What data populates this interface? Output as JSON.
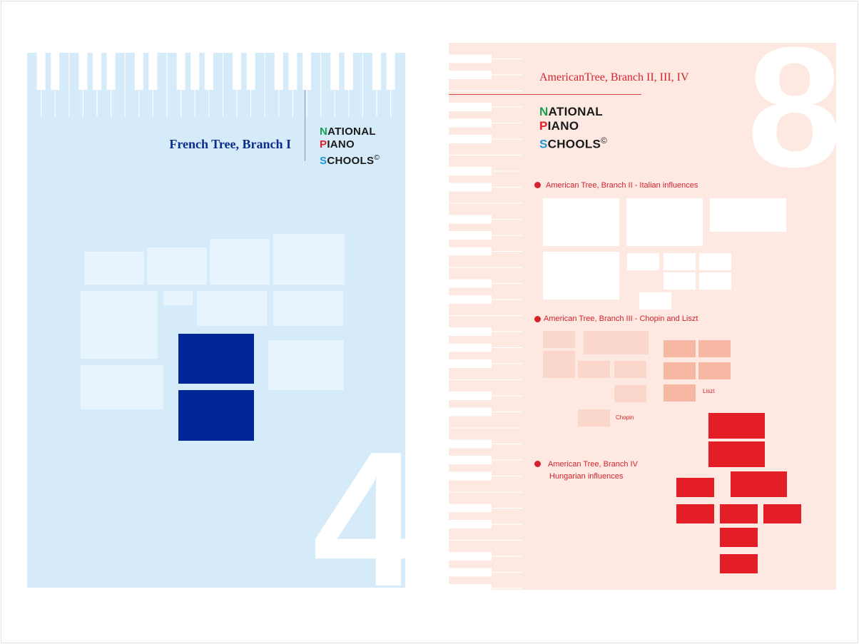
{
  "left_book": {
    "title": "French Tree, Branch I",
    "number": "4",
    "logo": {
      "n_initial": "N",
      "n_rest": "ATIONAL",
      "p_initial": "P",
      "p_rest": "IANO",
      "s_initial": "S",
      "s_rest": "CHOOLS",
      "copyright": "©"
    },
    "colors": {
      "background": "#d6ebf9",
      "accent": "#002596",
      "light_box": "#e8f4fd"
    }
  },
  "right_book": {
    "title": "AmericanTree, Branch II, III, IV",
    "number": "8",
    "logo": {
      "n_initial": "N",
      "n_rest": "ATIONAL",
      "p_initial": "P",
      "p_rest": "IANO",
      "s_initial": "S",
      "s_rest": "CHOOLS",
      "copyright": "©"
    },
    "sections": [
      {
        "label": "American Tree, Branch II - Italian influences"
      },
      {
        "label": "American Tree, Branch III - Chopin and Liszt"
      },
      {
        "label_line1": "American Tree, Branch IV",
        "label_line2": "Hungarian influences"
      }
    ],
    "box_labels": {
      "liszt": "Liszt",
      "chopin": "Chopin"
    },
    "colors": {
      "background": "#fde9e2",
      "accent": "#e31e26",
      "pale": "#fbd7cb",
      "medium": "#f6b8a2"
    }
  }
}
